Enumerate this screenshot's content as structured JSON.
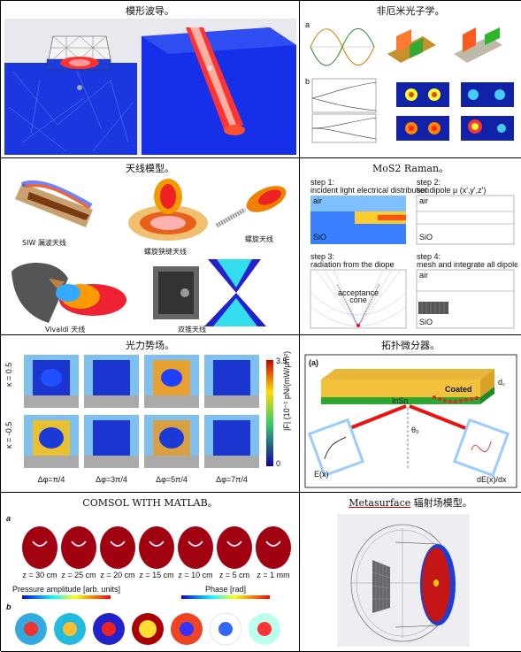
{
  "cells": [
    {
      "title": "模形波导。"
    },
    {
      "title": "非厄米光子学。"
    },
    {
      "title": "天线模型。"
    },
    {
      "title": "MoS2 Raman。"
    },
    {
      "title": "光力势场。"
    },
    {
      "title": "拓扑微分器。"
    },
    {
      "title": "COMSOL WITH MATLAB。"
    },
    {
      "title_highlight": "Metasurface",
      "title_rest": " 辐射场模型。"
    }
  ],
  "antenna": {
    "siw": "SIW 漏波天线",
    "spiral_slot": "螺旋狭缝天线",
    "helix": "螺旋天线",
    "vivaldi": "Vivaldi 天线",
    "biconical": "双锥天线"
  },
  "raman": {
    "step1": "step 1:",
    "step1_desc": "incident light electrical distribution",
    "step2": "step 2:",
    "step2_desc": "set dipole μ (x',y',z')",
    "step3": "step 3:",
    "step3_desc": "radiation from the diope",
    "step4": "step 4:",
    "step4_desc": "mesh and integrate all dipoles",
    "air": "air",
    "sio2": "SiO",
    "sio2_sub": "2",
    "acceptance": "acceptance",
    "cone": "cone"
  },
  "optical_force": {
    "rows": [
      "κ = 0.5",
      "κ = -0.5"
    ],
    "cols": [
      "Δφ=π/4",
      "Δφ=3π/4",
      "Δφ=5π/4",
      "Δφ=7π/4"
    ],
    "colorbar_top": "3.5",
    "colorbar_bottom": "0",
    "colorbar_label": "|F| (10⁻¹ pN/(mW/μm²))"
  },
  "topo": {
    "panel": "(a)",
    "coated": "Coated",
    "layer": "InSn",
    "theta": "θ₀",
    "dc": "d꜀",
    "ds": "d꜀",
    "ein": "E(x)",
    "eout": "dE(x)/dx"
  },
  "matlab": {
    "a": "a",
    "b": "b",
    "amp_label": "Pressure amplitude [arb. units]",
    "phase_label": "Phase [rad]",
    "z_labels": [
      "z = 30 cm",
      "z = 25 cm",
      "z = 20 cm",
      "z = 15 cm",
      "z = 10 cm",
      "z = 5 cm",
      "z = 1 mm"
    ]
  }
}
